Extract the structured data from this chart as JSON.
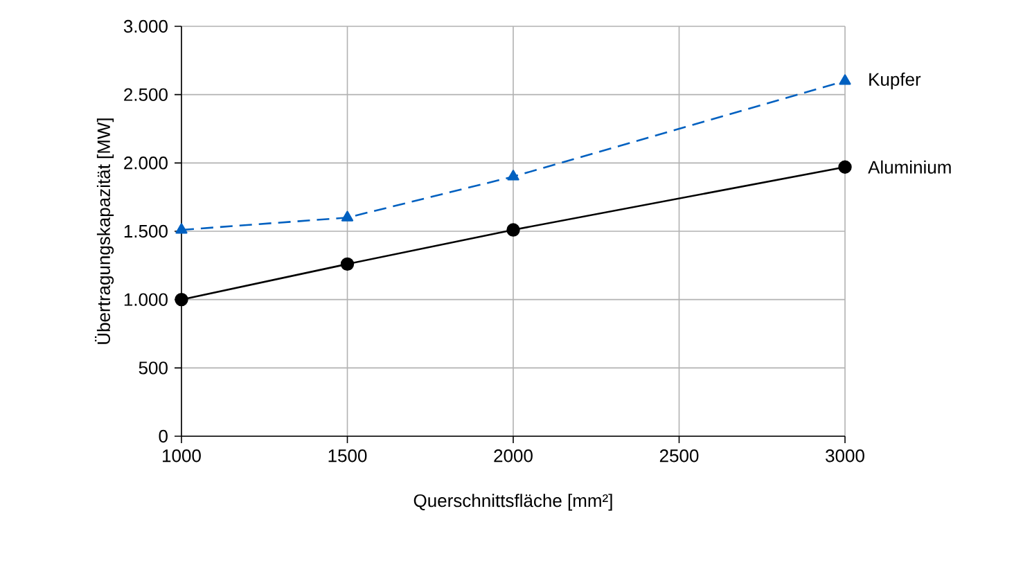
{
  "chart_data": {
    "type": "line",
    "xlabel": "Querschnittsfläche [mm²]",
    "ylabel": "Übertragungskapazität [MW]",
    "x": [
      1000,
      1500,
      2000,
      3000
    ],
    "series": [
      {
        "name": "Kupfer",
        "color": "#0060c0",
        "values": [
          1510,
          1600,
          1900,
          2600
        ],
        "marker": "triangle",
        "line_style": "dashed"
      },
      {
        "name": "Aluminium",
        "color": "#000000",
        "values": [
          1000,
          1260,
          1510,
          1970
        ],
        "marker": "circle",
        "line_style": "solid"
      }
    ],
    "xlim": [
      1000,
      3000
    ],
    "xticks": [
      1000,
      1500,
      2000,
      2500,
      3000
    ],
    "ylim": [
      0,
      3000
    ],
    "yticks": [
      {
        "value": 0,
        "label": "0"
      },
      {
        "value": 500,
        "label": "500"
      },
      {
        "value": 1000,
        "label": "1.000"
      },
      {
        "value": 1500,
        "label": "1.500"
      },
      {
        "value": 2000,
        "label": "2.000"
      },
      {
        "value": 2500,
        "label": "2.500"
      },
      {
        "value": 3000,
        "label": "3.000"
      }
    ],
    "grid": true,
    "legend": false
  }
}
